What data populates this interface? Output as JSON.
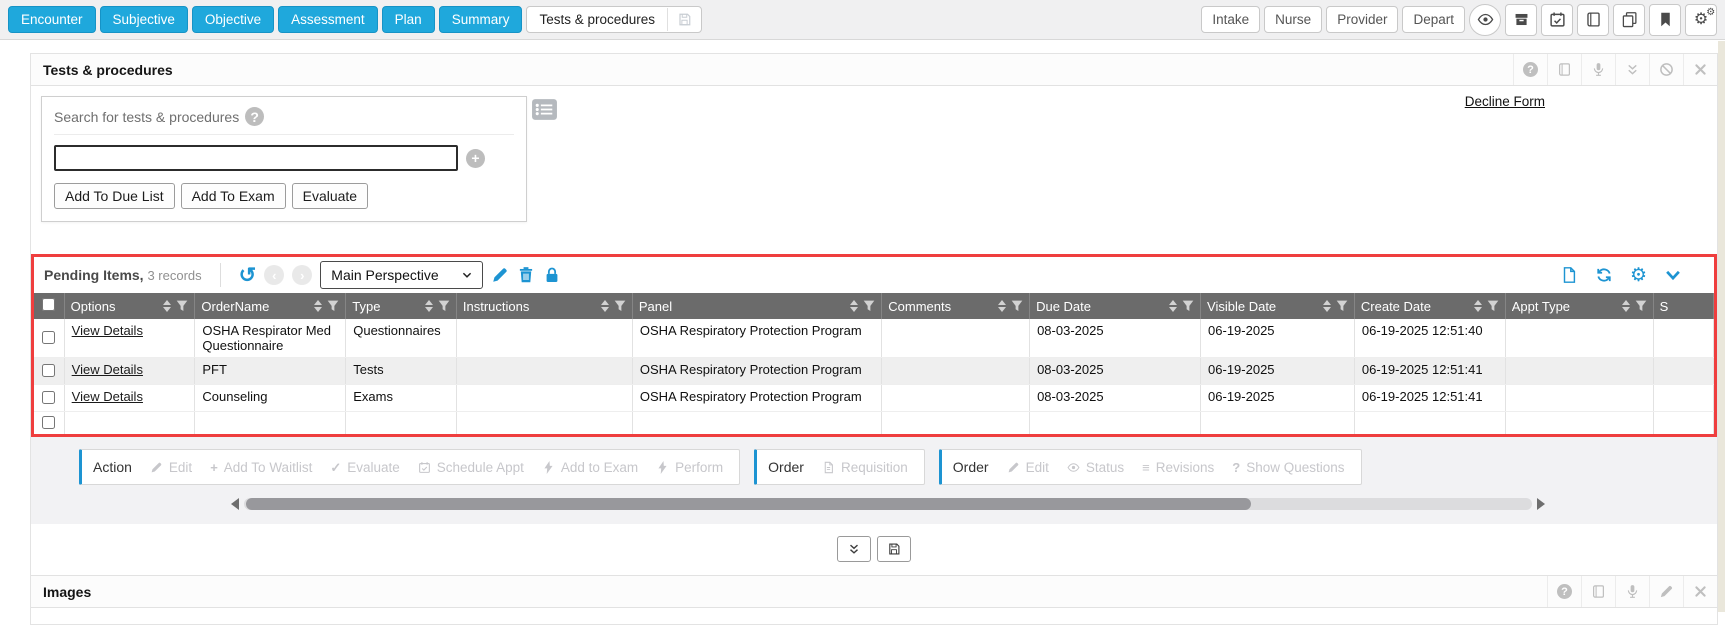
{
  "colors": {
    "accent_blue": "#1fa8dc",
    "icon_blue": "#1d94d2",
    "highlight_red": "#ef3e3e",
    "table_header_gray": "#6b6b6b"
  },
  "topbar": {
    "tabs": [
      "Encounter",
      "Subjective",
      "Objective",
      "Assessment",
      "Plan",
      "Summary"
    ],
    "active_tab": {
      "label": "Tests & procedures",
      "icon": "save-icon"
    },
    "right_buttons": [
      "Intake",
      "Nurse",
      "Provider",
      "Depart"
    ],
    "right_icons": [
      "eye-icon",
      "archive-box-icon",
      "calendar-check-icon",
      "book-icon",
      "copy-icon",
      "bookmark-icon",
      "gears-icon"
    ]
  },
  "tests_section": {
    "title": "Tests & procedures",
    "header_icons": [
      "help-icon",
      "book-icon",
      "microphone-icon",
      "collapse-icon",
      "block-icon",
      "close-icon"
    ],
    "search": {
      "label": "Search for tests & procedures",
      "help_icon": "help-icon",
      "list_icon": "list-icon",
      "input_value": "",
      "add_icon": "plus-circle-icon",
      "buttons": [
        "Add To Due List",
        "Add To Exam",
        "Evaluate"
      ]
    },
    "decline_link": "Decline Form"
  },
  "pending": {
    "title": "Pending Items,",
    "records_text": "3 records",
    "left_icons": [
      "undo-icon",
      "chevron-circle-left-icon",
      "chevron-circle-right-icon"
    ],
    "perspective_value": "Main Perspective",
    "edit_icons": [
      "pencil-icon",
      "trash-icon",
      "lock-icon"
    ],
    "right_icons": [
      "page-icon",
      "refresh-icon",
      "gear-icon",
      "chevron-down-icon"
    ],
    "table": {
      "columns": [
        {
          "key": "checkbox",
          "type": "checkbox"
        },
        {
          "key": "options",
          "label": "Options"
        },
        {
          "key": "order_name",
          "label": "OrderName"
        },
        {
          "key": "type",
          "label": "Type"
        },
        {
          "key": "instructions",
          "label": "Instructions"
        },
        {
          "key": "panel",
          "label": "Panel"
        },
        {
          "key": "comments",
          "label": "Comments"
        },
        {
          "key": "due_date",
          "label": "Due Date"
        },
        {
          "key": "visible_date",
          "label": "Visible Date"
        },
        {
          "key": "create_date",
          "label": "Create Date"
        },
        {
          "key": "appt_type",
          "label": "Appt Type"
        },
        {
          "key": "s",
          "label": "S",
          "truncated": true
        }
      ],
      "options_link_label": "View Details",
      "rows": [
        {
          "options": "View Details",
          "order_name": "OSHA Respirator Med Questionnaire",
          "type": "Questionnaires",
          "instructions": "",
          "panel": "OSHA Respiratory Protection Program",
          "comments": "",
          "due_date": "08-03-2025",
          "visible_date": "06-19-2025",
          "create_date": "06-19-2025 12:51:40",
          "appt_type": "",
          "s": ""
        },
        {
          "options": "View Details",
          "order_name": "PFT",
          "type": "Tests",
          "instructions": "",
          "panel": "OSHA Respiratory Protection Program",
          "comments": "",
          "due_date": "08-03-2025",
          "visible_date": "06-19-2025",
          "create_date": "06-19-2025 12:51:41",
          "appt_type": "",
          "s": ""
        },
        {
          "options": "View Details",
          "order_name": "Counseling",
          "type": "Exams",
          "instructions": "",
          "panel": "OSHA Respiratory Protection Program",
          "comments": "",
          "due_date": "08-03-2025",
          "visible_date": "06-19-2025",
          "create_date": "06-19-2025 12:51:41",
          "appt_type": "",
          "s": ""
        }
      ]
    }
  },
  "action_bar": {
    "groups": [
      {
        "label": "Action",
        "buttons": [
          {
            "label": "Edit",
            "icon": "pencil-icon"
          },
          {
            "label": "Add To Waitlist",
            "icon": "plus-icon"
          },
          {
            "label": "Evaluate",
            "icon": "check-icon"
          },
          {
            "label": "Schedule Appt",
            "icon": "calendar-icon"
          },
          {
            "label": "Add to Exam",
            "icon": "bolt-icon"
          },
          {
            "label": "Perform",
            "icon": "bolt-icon"
          }
        ]
      },
      {
        "label": "Order",
        "buttons": [
          {
            "label": "Requisition",
            "icon": "requisition-icon"
          }
        ]
      },
      {
        "label": "Order",
        "buttons": [
          {
            "label": "Edit",
            "icon": "pencil-icon"
          },
          {
            "label": "Status",
            "icon": "eye-icon"
          },
          {
            "label": "Revisions",
            "icon": "revisions-icon"
          },
          {
            "label": "Show Questions",
            "icon": "question-icon"
          }
        ]
      }
    ]
  },
  "footer_buttons": {
    "collapse_icon": "double-chevron-down-icon",
    "save_icon": "save-icon"
  },
  "images_section": {
    "title": "Images",
    "header_icons": [
      "help-icon",
      "book-icon",
      "microphone-icon",
      "pencil-icon",
      "close-icon"
    ]
  }
}
